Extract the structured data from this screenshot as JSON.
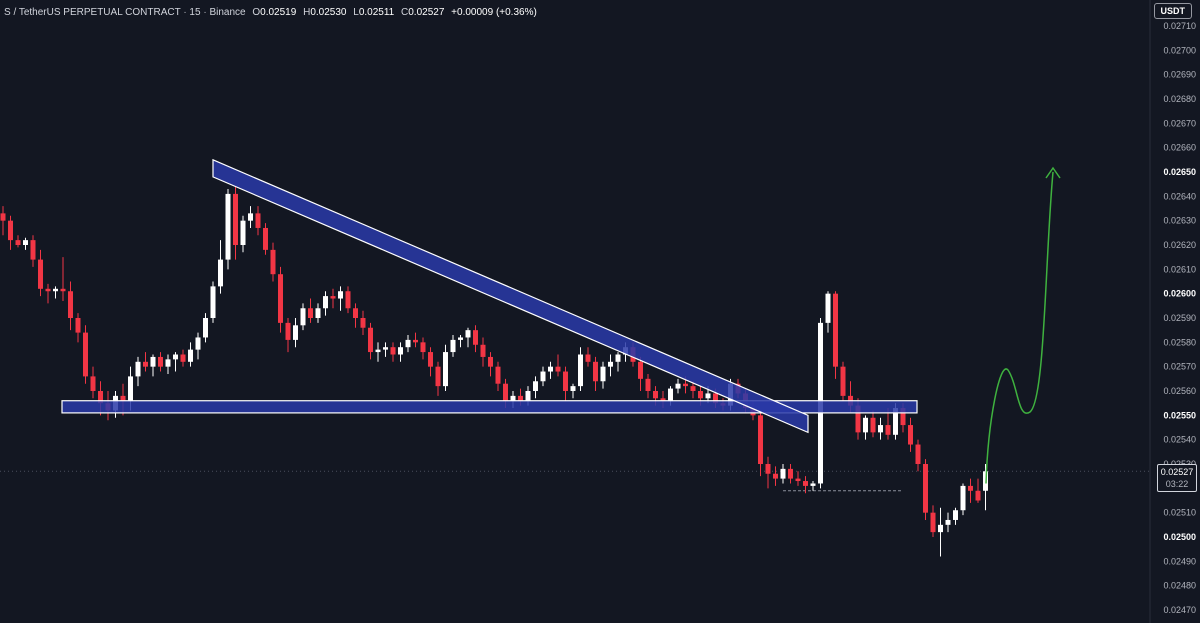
{
  "header": {
    "symbol": "S / TetherUS PERPETUAL CONTRACT",
    "interval": "15",
    "exchange": "Binance",
    "o_label": "O",
    "o": "0.02519",
    "h_label": "H",
    "h": "0.02530",
    "l_label": "L",
    "l": "0.02511",
    "c_label": "C",
    "c": "0.02527",
    "change": "+0.00009 (+0.36%)"
  },
  "currency": "USDT",
  "last_price": {
    "price": "0.02527",
    "countdown": "03:22"
  },
  "colors": {
    "background": "#131722",
    "up": "#ffffff",
    "down": "#f23645",
    "zone_fill": "#2a3aa8",
    "zone_stroke": "#ffffff",
    "projection": "#3fb23f"
  },
  "chart_data": {
    "type": "candlestick",
    "ylim": [
      0.02465,
      0.0272
    ],
    "y_ticks": [
      "0.02710",
      "0.02700",
      "0.02690",
      "0.02680",
      "0.02670",
      "0.02660",
      "0.02650",
      "0.02640",
      "0.02630",
      "0.02620",
      "0.02610",
      "0.02600",
      "0.02590",
      "0.02580",
      "0.02570",
      "0.02560",
      "0.02550",
      "0.02540",
      "0.02530",
      "0.02520",
      "0.02510",
      "0.02500",
      "0.02490",
      "0.02480",
      "0.02470"
    ],
    "bold_ticks": [
      "0.02650",
      "0.02600",
      "0.02550",
      "0.02500"
    ],
    "candles": [
      [
        0.02633,
        0.02636,
        0.02624,
        0.0263
      ],
      [
        0.0263,
        0.02632,
        0.02618,
        0.02622
      ],
      [
        0.02622,
        0.02624,
        0.02619,
        0.0262
      ],
      [
        0.0262,
        0.02623,
        0.02618,
        0.02622
      ],
      [
        0.02622,
        0.02624,
        0.02611,
        0.02614
      ],
      [
        0.02614,
        0.02618,
        0.02599,
        0.02602
      ],
      [
        0.02602,
        0.02604,
        0.02596,
        0.02601
      ],
      [
        0.02601,
        0.02603,
        0.02598,
        0.02602
      ],
      [
        0.02602,
        0.02615,
        0.02597,
        0.02601
      ],
      [
        0.02601,
        0.02605,
        0.02585,
        0.0259
      ],
      [
        0.0259,
        0.02592,
        0.0258,
        0.02584
      ],
      [
        0.02584,
        0.02587,
        0.02563,
        0.02566
      ],
      [
        0.02566,
        0.0257,
        0.02557,
        0.0256
      ],
      [
        0.0256,
        0.02564,
        0.0255,
        0.02555
      ],
      [
        0.02555,
        0.0256,
        0.02548,
        0.02552
      ],
      [
        0.02552,
        0.0256,
        0.02549,
        0.02558
      ],
      [
        0.02558,
        0.02563,
        0.0255,
        0.02556
      ],
      [
        0.02556,
        0.0257,
        0.02552,
        0.02566
      ],
      [
        0.02566,
        0.02574,
        0.02562,
        0.02572
      ],
      [
        0.02572,
        0.02576,
        0.02568,
        0.0257
      ],
      [
        0.0257,
        0.02575,
        0.02566,
        0.02574
      ],
      [
        0.02574,
        0.02576,
        0.02568,
        0.0257
      ],
      [
        0.0257,
        0.02575,
        0.02567,
        0.02573
      ],
      [
        0.02573,
        0.02576,
        0.02568,
        0.02575
      ],
      [
        0.02575,
        0.02577,
        0.0257,
        0.02572
      ],
      [
        0.02572,
        0.0258,
        0.0257,
        0.02577
      ],
      [
        0.02577,
        0.02584,
        0.02573,
        0.02582
      ],
      [
        0.02582,
        0.02592,
        0.0258,
        0.0259
      ],
      [
        0.0259,
        0.02605,
        0.02588,
        0.02603
      ],
      [
        0.02603,
        0.02622,
        0.026,
        0.02614
      ],
      [
        0.02614,
        0.02643,
        0.0261,
        0.02641
      ],
      [
        0.02641,
        0.02644,
        0.02614,
        0.0262
      ],
      [
        0.0262,
        0.02632,
        0.02617,
        0.0263
      ],
      [
        0.0263,
        0.02636,
        0.02627,
        0.02633
      ],
      [
        0.02633,
        0.02636,
        0.02624,
        0.02627
      ],
      [
        0.02627,
        0.02629,
        0.02616,
        0.02618
      ],
      [
        0.02618,
        0.02621,
        0.02605,
        0.02608
      ],
      [
        0.02608,
        0.02611,
        0.02584,
        0.02588
      ],
      [
        0.02588,
        0.0259,
        0.02576,
        0.02581
      ],
      [
        0.02581,
        0.0259,
        0.02578,
        0.02587
      ],
      [
        0.02587,
        0.02596,
        0.02585,
        0.02594
      ],
      [
        0.02594,
        0.02598,
        0.02588,
        0.0259
      ],
      [
        0.0259,
        0.02596,
        0.02588,
        0.02594
      ],
      [
        0.02594,
        0.02601,
        0.02591,
        0.02599
      ],
      [
        0.02599,
        0.02602,
        0.02594,
        0.02598
      ],
      [
        0.02598,
        0.02603,
        0.02593,
        0.02601
      ],
      [
        0.02601,
        0.02603,
        0.02592,
        0.02594
      ],
      [
        0.02594,
        0.02596,
        0.02586,
        0.0259
      ],
      [
        0.0259,
        0.02593,
        0.02583,
        0.02586
      ],
      [
        0.02586,
        0.02588,
        0.02573,
        0.02576
      ],
      [
        0.02576,
        0.0258,
        0.02572,
        0.02577
      ],
      [
        0.02577,
        0.0258,
        0.02574,
        0.02578
      ],
      [
        0.02578,
        0.0258,
        0.02572,
        0.02575
      ],
      [
        0.02575,
        0.0258,
        0.02572,
        0.02578
      ],
      [
        0.02578,
        0.02583,
        0.02576,
        0.02581
      ],
      [
        0.02581,
        0.02584,
        0.02578,
        0.0258
      ],
      [
        0.0258,
        0.02582,
        0.02573,
        0.02576
      ],
      [
        0.02576,
        0.02578,
        0.02566,
        0.0257
      ],
      [
        0.0257,
        0.02572,
        0.02558,
        0.02562
      ],
      [
        0.02562,
        0.02579,
        0.0256,
        0.02576
      ],
      [
        0.02576,
        0.02583,
        0.02574,
        0.02581
      ],
      [
        0.02581,
        0.02583,
        0.02578,
        0.02582
      ],
      [
        0.02582,
        0.02586,
        0.02578,
        0.02585
      ],
      [
        0.02585,
        0.02587,
        0.02576,
        0.02579
      ],
      [
        0.02579,
        0.02582,
        0.0257,
        0.02574
      ],
      [
        0.02574,
        0.02576,
        0.02566,
        0.0257
      ],
      [
        0.0257,
        0.02572,
        0.0256,
        0.02563
      ],
      [
        0.02563,
        0.02565,
        0.02553,
        0.02556
      ],
      [
        0.02556,
        0.0256,
        0.02553,
        0.02558
      ],
      [
        0.02558,
        0.02561,
        0.02554,
        0.02556
      ],
      [
        0.02556,
        0.02562,
        0.02554,
        0.0256
      ],
      [
        0.0256,
        0.02566,
        0.02557,
        0.02564
      ],
      [
        0.02564,
        0.0257,
        0.02562,
        0.02568
      ],
      [
        0.02568,
        0.02572,
        0.02565,
        0.0257
      ],
      [
        0.0257,
        0.02575,
        0.02566,
        0.02568
      ],
      [
        0.02568,
        0.0257,
        0.02556,
        0.0256
      ],
      [
        0.0256,
        0.02563,
        0.02557,
        0.02562
      ],
      [
        0.02562,
        0.02578,
        0.0256,
        0.02575
      ],
      [
        0.02575,
        0.02578,
        0.0257,
        0.02572
      ],
      [
        0.02572,
        0.02574,
        0.0256,
        0.02564
      ],
      [
        0.02564,
        0.02572,
        0.02561,
        0.0257
      ],
      [
        0.0257,
        0.02575,
        0.02566,
        0.02572
      ],
      [
        0.02572,
        0.02576,
        0.02568,
        0.02575
      ],
      [
        0.02575,
        0.0258,
        0.02572,
        0.02578
      ],
      [
        0.02578,
        0.0258,
        0.0257,
        0.02572
      ],
      [
        0.02572,
        0.02574,
        0.0256,
        0.02565
      ],
      [
        0.02565,
        0.02567,
        0.02557,
        0.0256
      ],
      [
        0.0256,
        0.02562,
        0.02554,
        0.02557
      ],
      [
        0.02557,
        0.0256,
        0.02553,
        0.02556
      ],
      [
        0.02556,
        0.02562,
        0.02554,
        0.02561
      ],
      [
        0.02561,
        0.02565,
        0.02559,
        0.02563
      ],
      [
        0.02563,
        0.02566,
        0.02559,
        0.02562
      ],
      [
        0.02562,
        0.02564,
        0.02557,
        0.0256
      ],
      [
        0.0256,
        0.02562,
        0.02554,
        0.02557
      ],
      [
        0.02557,
        0.02562,
        0.02555,
        0.02559
      ],
      [
        0.02559,
        0.02561,
        0.02553,
        0.02555
      ],
      [
        0.02555,
        0.02557,
        0.02552,
        0.02554
      ],
      [
        0.02554,
        0.02565,
        0.02552,
        0.02563
      ],
      [
        0.02563,
        0.02565,
        0.02557,
        0.02559
      ],
      [
        0.02559,
        0.02561,
        0.02551,
        0.02553
      ],
      [
        0.02553,
        0.02556,
        0.02548,
        0.0255
      ],
      [
        0.0255,
        0.02552,
        0.02525,
        0.0253
      ],
      [
        0.0253,
        0.02533,
        0.0252,
        0.02526
      ],
      [
        0.02526,
        0.02529,
        0.02521,
        0.02524
      ],
      [
        0.02524,
        0.0253,
        0.02522,
        0.02528
      ],
      [
        0.02528,
        0.0253,
        0.02522,
        0.02524
      ],
      [
        0.02524,
        0.02527,
        0.02521,
        0.02523
      ],
      [
        0.02523,
        0.02525,
        0.02518,
        0.02521
      ],
      [
        0.02521,
        0.02523,
        0.02519,
        0.02522
      ],
      [
        0.02522,
        0.0259,
        0.0252,
        0.02588
      ],
      [
        0.02588,
        0.02601,
        0.02584,
        0.026
      ],
      [
        0.026,
        0.02601,
        0.02565,
        0.0257
      ],
      [
        0.0257,
        0.02572,
        0.02556,
        0.02558
      ],
      [
        0.02558,
        0.02564,
        0.02551,
        0.02554
      ],
      [
        0.02554,
        0.02557,
        0.0254,
        0.02543
      ],
      [
        0.02543,
        0.0255,
        0.0254,
        0.02549
      ],
      [
        0.02549,
        0.02552,
        0.02541,
        0.02543
      ],
      [
        0.02543,
        0.02549,
        0.0254,
        0.02546
      ],
      [
        0.02546,
        0.02553,
        0.0254,
        0.02542
      ],
      [
        0.02542,
        0.02555,
        0.0254,
        0.02553
      ],
      [
        0.02553,
        0.02555,
        0.02543,
        0.02546
      ],
      [
        0.02546,
        0.02549,
        0.02535,
        0.02538
      ],
      [
        0.02538,
        0.0254,
        0.02527,
        0.0253
      ],
      [
        0.0253,
        0.02532,
        0.02507,
        0.0251
      ],
      [
        0.0251,
        0.02513,
        0.025,
        0.02502
      ],
      [
        0.02502,
        0.02512,
        0.02492,
        0.02505
      ],
      [
        0.02505,
        0.0251,
        0.02502,
        0.02507
      ],
      [
        0.02507,
        0.02512,
        0.02505,
        0.02511
      ],
      [
        0.02511,
        0.02522,
        0.02509,
        0.02521
      ],
      [
        0.02521,
        0.02524,
        0.02514,
        0.02519
      ],
      [
        0.02519,
        0.02524,
        0.02514,
        0.02515
      ],
      [
        0.02519,
        0.0253,
        0.02511,
        0.02527
      ]
    ]
  }
}
